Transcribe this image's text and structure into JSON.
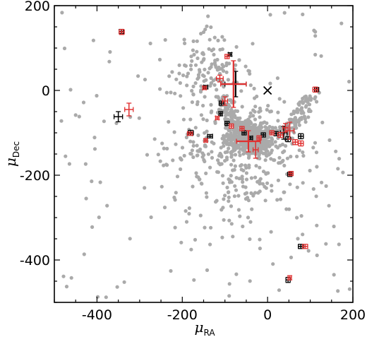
{
  "chart_data": {
    "type": "scatter",
    "title": "",
    "xlabel": "μ",
    "xlabel_sub": "RA",
    "ylabel": "μ",
    "ylabel_sub": "Dec",
    "xlim": [
      -500,
      200
    ],
    "ylim": [
      -500,
      200
    ],
    "xticks": [
      -400,
      -200,
      0,
      200
    ],
    "yticks": [
      -400,
      -200,
      0,
      200
    ],
    "x_tick_labels": [
      "-400",
      "-200",
      "0",
      "200"
    ],
    "y_tick_labels": [
      "-400",
      "-200",
      "0",
      "200"
    ],
    "grid": false,
    "legend": "none",
    "colors": {
      "background_points": "#aaaaaa",
      "black_series": "#000000",
      "red_series": "#e03030",
      "center_marker": "#000000"
    },
    "center_marker": {
      "x": 0,
      "y": 0,
      "symbol": "x"
    },
    "series": [
      {
        "color": "#000000",
        "points": [
          {
            "x": -343,
            "y": 139,
            "xerr": 5,
            "yerr": 5
          },
          {
            "x": -350,
            "y": -62,
            "xerr": 10,
            "yerr": 12
          },
          {
            "x": -88,
            "y": 85,
            "xerr": 4,
            "yerr": 4
          },
          {
            "x": -75,
            "y": 15,
            "xerr": 25,
            "yerr": 30
          },
          {
            "x": -108,
            "y": -30,
            "xerr": 5,
            "yerr": 5
          },
          {
            "x": -110,
            "y": -55,
            "xerr": 4,
            "yerr": 5
          },
          {
            "x": -145,
            "y": 8,
            "xerr": 5,
            "yerr": 4
          },
          {
            "x": -180,
            "y": -100,
            "xerr": 6,
            "yerr": 6
          },
          {
            "x": -135,
            "y": -108,
            "xerr": 6,
            "yerr": 4
          },
          {
            "x": -95,
            "y": -78,
            "xerr": 5,
            "yerr": 5
          },
          {
            "x": -55,
            "y": -100,
            "xerr": 5,
            "yerr": 5
          },
          {
            "x": -40,
            "y": -112,
            "xerr": 5,
            "yerr": 4
          },
          {
            "x": -10,
            "y": -105,
            "xerr": 5,
            "yerr": 5
          },
          {
            "x": 20,
            "y": -102,
            "xerr": 5,
            "yerr": 5
          },
          {
            "x": 38,
            "y": -100,
            "xerr": 8,
            "yerr": 15
          },
          {
            "x": 48,
            "y": -115,
            "xerr": 6,
            "yerr": 6
          },
          {
            "x": 78,
            "y": -108,
            "xerr": 6,
            "yerr": 6
          },
          {
            "x": 115,
            "y": 2,
            "xerr": 5,
            "yerr": 5
          },
          {
            "x": 52,
            "y": -198,
            "xerr": 5,
            "yerr": 5
          },
          {
            "x": 78,
            "y": -368,
            "xerr": 6,
            "yerr": 5
          },
          {
            "x": 48,
            "y": -447,
            "xerr": 5,
            "yerr": 6
          }
        ]
      },
      {
        "color": "#e03030",
        "points": [
          {
            "x": -342,
            "y": 138,
            "xerr": 6,
            "yerr": 6
          },
          {
            "x": -325,
            "y": -45,
            "xerr": 10,
            "yerr": 15
          },
          {
            "x": -95,
            "y": 80,
            "xerr": 5,
            "yerr": 5
          },
          {
            "x": -80,
            "y": 15,
            "xerr": 30,
            "yerr": 55
          },
          {
            "x": -112,
            "y": 28,
            "xerr": 8,
            "yerr": 8
          },
          {
            "x": -100,
            "y": -25,
            "xerr": 6,
            "yerr": 10
          },
          {
            "x": -118,
            "y": -65,
            "xerr": 4,
            "yerr": 4
          },
          {
            "x": -148,
            "y": 6,
            "xerr": 4,
            "yerr": 4
          },
          {
            "x": -182,
            "y": -102,
            "xerr": 6,
            "yerr": 4
          },
          {
            "x": -145,
            "y": -118,
            "xerr": 4,
            "yerr": 4
          },
          {
            "x": -85,
            "y": -84,
            "xerr": 5,
            "yerr": 5
          },
          {
            "x": -60,
            "y": -90,
            "xerr": 5,
            "yerr": 5
          },
          {
            "x": -45,
            "y": -120,
            "xerr": 28,
            "yerr": 25
          },
          {
            "x": -28,
            "y": -140,
            "xerr": 6,
            "yerr": 20
          },
          {
            "x": -20,
            "y": -112,
            "xerr": 5,
            "yerr": 5
          },
          {
            "x": 10,
            "y": -100,
            "xerr": 5,
            "yerr": 5
          },
          {
            "x": 30,
            "y": -105,
            "xerr": 6,
            "yerr": 6
          },
          {
            "x": 42,
            "y": -88,
            "xerr": 6,
            "yerr": 10
          },
          {
            "x": 52,
            "y": -95,
            "xerr": 10,
            "yerr": 20
          },
          {
            "x": 65,
            "y": -122,
            "xerr": 6,
            "yerr": 6
          },
          {
            "x": 78,
            "y": -125,
            "xerr": 6,
            "yerr": 6
          },
          {
            "x": 112,
            "y": 2,
            "xerr": 6,
            "yerr": 6
          },
          {
            "x": 55,
            "y": -196,
            "xerr": 5,
            "yerr": 5
          },
          {
            "x": 88,
            "y": -368,
            "xerr": 6,
            "yerr": 5
          },
          {
            "x": 52,
            "y": -442,
            "xerr": 4,
            "yerr": 5
          }
        ]
      }
    ]
  }
}
